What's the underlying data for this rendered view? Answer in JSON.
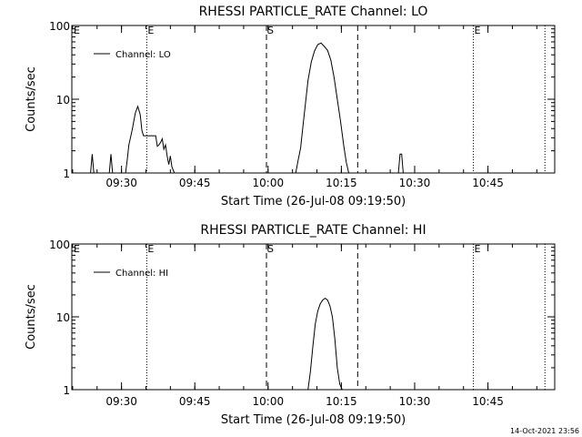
{
  "chart_data": [
    {
      "type": "line",
      "title": "RHESSI PARTICLE_RATE Channel: LO",
      "xlabel": "Start Time (26-Jul-08 09:19:50)",
      "ylabel": "Counts/sec",
      "yscale": "log",
      "ylim": [
        1,
        100
      ],
      "y_ticks": [
        "1",
        "10",
        "100"
      ],
      "x_ticks": [
        "09:30",
        "09:45",
        "10:00",
        "10:15",
        "10:30",
        "10:45"
      ],
      "xlim": [
        "09:19:50",
        "10:58:40"
      ],
      "legend": {
        "placement": "top-left",
        "label": "Channel: LO"
      },
      "markers": [
        {
          "time": "09:35:10",
          "style": "dotted",
          "label": "E"
        },
        {
          "time": "09:59:40",
          "style": "dashed",
          "label": "S"
        },
        {
          "time": "10:18:20",
          "style": "dashed",
          "label": ""
        },
        {
          "time": "10:42:00",
          "style": "dotted",
          "label": "E"
        },
        {
          "time": "10:56:40",
          "style": "dotted",
          "label": ""
        }
      ],
      "corner_labels": [
        {
          "text": "E",
          "time": "09:19:50"
        }
      ],
      "series": [
        {
          "name": "Channel: LO",
          "x": [
            "09:23:40",
            "09:24:00",
            "09:24:20",
            "09:24:40",
            "09:27:30",
            "09:27:50",
            "09:28:10",
            "09:30:50",
            "09:31:10",
            "09:31:30",
            "09:32:10",
            "09:32:50",
            "09:33:20",
            "09:33:50",
            "09:34:10",
            "09:34:30",
            "09:34:50",
            "09:35:10",
            "09:36:10",
            "09:37:00",
            "09:37:20",
            "09:37:40",
            "09:38:00",
            "09:38:20",
            "09:38:40",
            "09:39:00",
            "09:39:20",
            "09:39:40",
            "09:40:00",
            "09:40:20",
            "09:40:50",
            "10:05:40",
            "10:06:10",
            "10:06:40",
            "10:07:10",
            "10:07:40",
            "10:08:10",
            "10:08:50",
            "10:09:30",
            "10:10:10",
            "10:10:50",
            "10:11:30",
            "10:12:10",
            "10:12:50",
            "10:13:30",
            "10:14:10",
            "10:14:50",
            "10:15:30",
            "10:16:00",
            "10:16:30",
            "10:26:40",
            "10:27:00",
            "10:27:20",
            "10:27:40",
            "10:28:00"
          ],
          "y": [
            1,
            1.8,
            1,
            1,
            1,
            1.8,
            1,
            1,
            1.5,
            2.4,
            3.8,
            6.5,
            8,
            6.2,
            3.8,
            3.2,
            3.2,
            3.2,
            3.2,
            3.2,
            2.3,
            2.4,
            2.6,
            2.9,
            2.1,
            2.4,
            1.7,
            1.3,
            1.7,
            1.2,
            1,
            1,
            1.5,
            2.2,
            4.5,
            9,
            18,
            32,
            45,
            55,
            58,
            52,
            46,
            34,
            20,
            10,
            5,
            2.3,
            1.4,
            1,
            1,
            1.8,
            1.8,
            1,
            1
          ]
        }
      ]
    },
    {
      "type": "line",
      "title": "RHESSI PARTICLE_RATE Channel: HI",
      "xlabel": "Start Time (26-Jul-08 09:19:50)",
      "ylabel": "Counts/sec",
      "yscale": "log",
      "ylim": [
        1,
        100
      ],
      "y_ticks": [
        "1",
        "10",
        "100"
      ],
      "x_ticks": [
        "09:30",
        "09:45",
        "10:00",
        "10:15",
        "10:30",
        "10:45"
      ],
      "xlim": [
        "09:19:50",
        "10:58:40"
      ],
      "legend": {
        "placement": "top-left",
        "label": "Channel: HI"
      },
      "markers": [
        {
          "time": "09:35:10",
          "style": "dotted",
          "label": "E"
        },
        {
          "time": "09:59:40",
          "style": "dashed",
          "label": "S"
        },
        {
          "time": "10:18:20",
          "style": "dashed",
          "label": ""
        },
        {
          "time": "10:42:00",
          "style": "dotted",
          "label": "E"
        },
        {
          "time": "10:56:40",
          "style": "dotted",
          "label": ""
        }
      ],
      "corner_labels": [
        {
          "text": "E",
          "time": "09:19:50"
        }
      ],
      "series": [
        {
          "name": "Channel: HI",
          "x": [
            "10:08:10",
            "10:08:40",
            "10:09:10",
            "10:09:40",
            "10:10:10",
            "10:10:40",
            "10:11:10",
            "10:11:40",
            "10:12:10",
            "10:12:40",
            "10:13:10",
            "10:13:40",
            "10:14:10",
            "10:14:40",
            "10:15:10"
          ],
          "y": [
            1,
            1.8,
            4,
            8,
            12,
            15,
            17,
            18,
            17,
            14,
            10,
            5,
            2,
            1.2,
            1
          ]
        }
      ]
    }
  ],
  "timestamp": "14-Oct-2021 23:56"
}
